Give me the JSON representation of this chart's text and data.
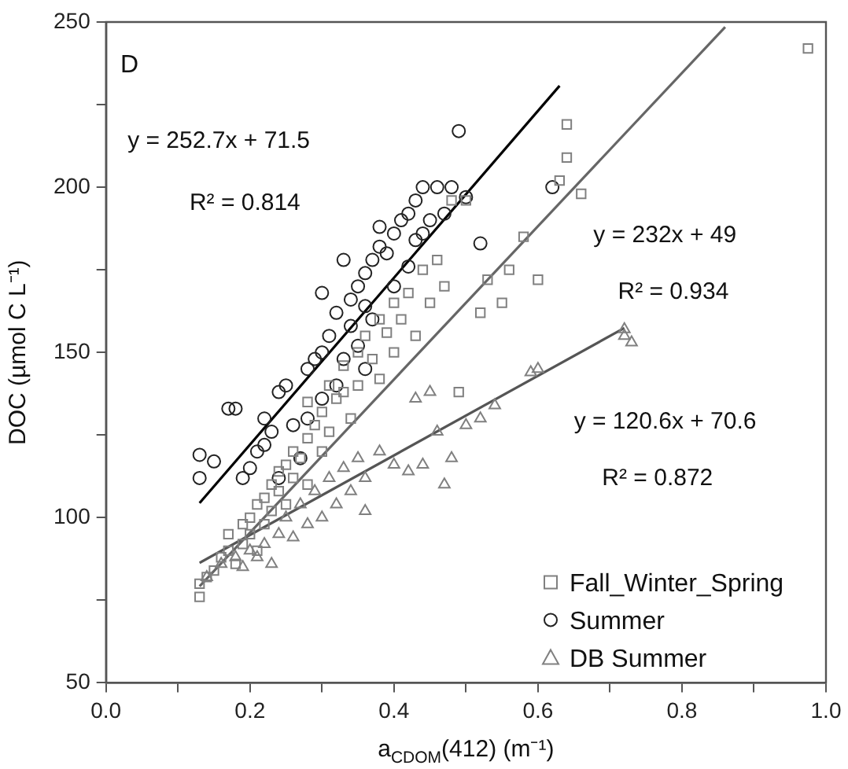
{
  "chart_data": {
    "type": "scatter",
    "xlabel": "a$_{CDOM}$(412) (m⁻¹)",
    "ylabel": "DOC (µmol C L⁻¹)",
    "xlim": [
      0,
      1
    ],
    "ylim": [
      50,
      250
    ],
    "xticks": [
      {
        "value": 0,
        "label": "0.0"
      },
      {
        "value": 0.1,
        "label": null
      },
      {
        "value": 0.2,
        "label": "0.2"
      },
      {
        "value": 0.3,
        "label": null
      },
      {
        "value": 0.4,
        "label": "0.4"
      },
      {
        "value": 0.5,
        "label": null
      },
      {
        "value": 0.6,
        "label": "0.6"
      },
      {
        "value": 0.7,
        "label": null
      },
      {
        "value": 0.8,
        "label": "0.8"
      },
      {
        "value": 0.9,
        "label": null
      },
      {
        "value": 1,
        "label": "1.0"
      }
    ],
    "yticks": [
      50,
      {
        "value": 75,
        "label": null
      },
      100,
      {
        "value": 125,
        "label": null
      },
      150,
      {
        "value": 175,
        "label": null
      },
      200,
      {
        "value": 225,
        "label": null
      },
      250
    ],
    "grid": false,
    "legend": "bottom right",
    "series": [
      {
        "name": "Fall_Winter_Spring",
        "color": "#808080",
        "marker": "square",
        "x": [
          0.13,
          0.13,
          0.14,
          0.15,
          0.16,
          0.17,
          0.17,
          0.18,
          0.19,
          0.19,
          0.2,
          0.2,
          0.21,
          0.21,
          0.22,
          0.22,
          0.23,
          0.23,
          0.24,
          0.24,
          0.25,
          0.25,
          0.26,
          0.26,
          0.27,
          0.28,
          0.28,
          0.29,
          0.3,
          0.3,
          0.31,
          0.31,
          0.32,
          0.33,
          0.33,
          0.34,
          0.35,
          0.35,
          0.36,
          0.37,
          0.38,
          0.38,
          0.39,
          0.4,
          0.4,
          0.41,
          0.42,
          0.43,
          0.44,
          0.45,
          0.46,
          0.47,
          0.48,
          0.5,
          0.52,
          0.53,
          0.55,
          0.56,
          0.58,
          0.6,
          0.63,
          0.64,
          0.64,
          0.66,
          0.975,
          0.49,
          0.28
        ],
        "values": [
          76,
          80,
          82,
          84,
          88,
          90,
          95,
          86,
          92,
          98,
          95,
          100,
          90,
          104,
          98,
          106,
          102,
          110,
          108,
          114,
          104,
          116,
          112,
          120,
          118,
          124,
          110,
          128,
          120,
          132,
          126,
          140,
          136,
          138,
          146,
          130,
          150,
          140,
          155,
          148,
          160,
          142,
          156,
          165,
          150,
          160,
          168,
          155,
          175,
          165,
          178,
          170,
          196,
          196,
          162,
          172,
          165,
          175,
          185,
          172,
          202,
          209,
          219,
          198,
          242,
          138,
          135
        ]
      },
      {
        "name": "Summer",
        "color": "#222222",
        "marker": "circle",
        "x": [
          0.13,
          0.13,
          0.15,
          0.17,
          0.18,
          0.19,
          0.2,
          0.21,
          0.22,
          0.22,
          0.23,
          0.24,
          0.25,
          0.26,
          0.28,
          0.28,
          0.29,
          0.3,
          0.3,
          0.31,
          0.32,
          0.32,
          0.33,
          0.34,
          0.34,
          0.35,
          0.35,
          0.36,
          0.36,
          0.37,
          0.37,
          0.38,
          0.38,
          0.39,
          0.4,
          0.4,
          0.41,
          0.42,
          0.42,
          0.43,
          0.43,
          0.44,
          0.44,
          0.45,
          0.46,
          0.47,
          0.48,
          0.49,
          0.5,
          0.52,
          0.27,
          0.24,
          0.3,
          0.33,
          0.36,
          0.62
        ],
        "values": [
          112,
          119,
          117,
          133,
          133,
          112,
          115,
          120,
          122,
          130,
          126,
          138,
          140,
          128,
          130,
          145,
          148,
          136,
          150,
          155,
          140,
          162,
          148,
          158,
          166,
          170,
          152,
          174,
          164,
          178,
          160,
          182,
          188,
          180,
          170,
          186,
          190,
          176,
          192,
          184,
          196,
          186,
          200,
          190,
          200,
          192,
          200,
          217,
          197,
          183,
          118,
          112,
          168,
          178,
          145,
          200
        ]
      },
      {
        "name": "DB Summer",
        "color": "#808080",
        "marker": "triangle",
        "x": [
          0.14,
          0.16,
          0.18,
          0.19,
          0.2,
          0.21,
          0.22,
          0.23,
          0.24,
          0.25,
          0.26,
          0.27,
          0.28,
          0.29,
          0.3,
          0.31,
          0.32,
          0.33,
          0.34,
          0.35,
          0.36,
          0.38,
          0.4,
          0.42,
          0.44,
          0.46,
          0.47,
          0.48,
          0.5,
          0.52,
          0.54,
          0.59,
          0.6,
          0.72,
          0.72,
          0.73,
          0.36,
          0.43,
          0.45
        ],
        "values": [
          82,
          86,
          88,
          85,
          90,
          88,
          92,
          86,
          95,
          100,
          94,
          104,
          98,
          108,
          100,
          112,
          104,
          115,
          108,
          118,
          112,
          120,
          116,
          114,
          116,
          126,
          110,
          118,
          128,
          130,
          134,
          144,
          145,
          155,
          157,
          153,
          102,
          136,
          138
        ]
      },
      {
        "type": "line",
        "color": "#000000",
        "x": [
          0.13,
          0.63
        ],
        "values": [
          104.4,
          230.7
        ]
      },
      {
        "type": "line",
        "color": "#666666",
        "x": [
          0.13,
          0.86
        ],
        "values": [
          79.2,
          248.5
        ]
      },
      {
        "type": "line",
        "color": "#555555",
        "x": [
          0.13,
          0.72
        ],
        "values": [
          86.3,
          157.4
        ]
      }
    ],
    "annotations": [
      "D",
      "y = 252.7x + 71.5",
      "R² = 0.814",
      "y = 232x + 49",
      "R² = 0.934",
      "y = 120.6x + 70.6",
      "R² = 0.872"
    ]
  }
}
